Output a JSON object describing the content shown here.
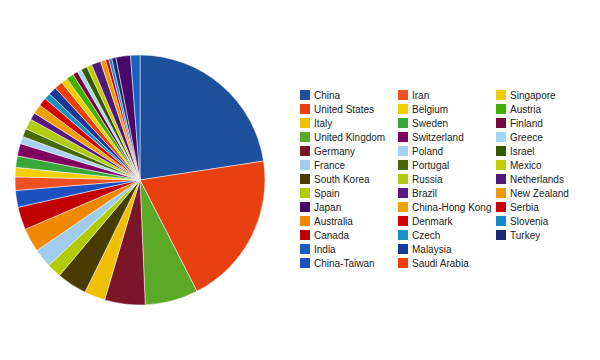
{
  "chart_data": {
    "type": "pie",
    "categories": [
      "China",
      "United States",
      "United Kingdom",
      "Germany",
      "Italy",
      "South Korea",
      "Spain",
      "France",
      "Australia",
      "Canada",
      "China-Taiwan",
      "Iran",
      "Belgium",
      "Sweden",
      "Switzerland",
      "Poland",
      "Portugal",
      "Russia",
      "Brazil",
      "China-Hong Kong",
      "Denmark",
      "Czech",
      "Malaysia",
      "Saudi Arabia",
      "Singapore",
      "Austria",
      "Finland",
      "Greece",
      "Israel",
      "Mexico",
      "Netherlands",
      "New Zealand",
      "Serbia",
      "Slovenia",
      "Turkey",
      "Japan",
      "India"
    ],
    "values": [
      168,
      148,
      51,
      39,
      20,
      29,
      14,
      18,
      23,
      22,
      16,
      13,
      9,
      11,
      12,
      7,
      8,
      10,
      7,
      9,
      8,
      6,
      8,
      8,
      6,
      7,
      5,
      4,
      6,
      5,
      9,
      5,
      3,
      3,
      4,
      14,
      9
    ],
    "colors": [
      "#1c4f9c",
      "#e84010",
      "#5aaa28",
      "#7b1528",
      "#f0c000",
      "#4a3c00",
      "#b0cc00",
      "#a0ccf0",
      "#f08800",
      "#c00000",
      "#1a50c0",
      "#f05020",
      "#f0d000",
      "#38a838",
      "#800060",
      "#a8d0f0",
      "#486800",
      "#b0cc10",
      "#581880",
      "#f0a000",
      "#d00000",
      "#1890c0",
      "#1a3898",
      "#f04000",
      "#f0cc00",
      "#40b000",
      "#780838",
      "#a0d8f8",
      "#385800",
      "#c0cc00",
      "#501878",
      "#f09800",
      "#c80008",
      "#1888c8",
      "#182870",
      "#480868",
      "#1860c0"
    ],
    "legend": "right",
    "legend_entries": [
      "China",
      "United States",
      "Italy",
      "United Kingdom",
      "Germany",
      "France",
      "South Korea",
      "Spain",
      "Japan",
      "Australia",
      "Canada",
      "India",
      "China-Taiwan",
      "Iran",
      "Belgium",
      "Sweden",
      "Switzerland",
      "Poland",
      "Portugal",
      "Russia",
      "Brazil",
      "China-Hong Kong",
      "Denmark",
      "Czech",
      "Malaysia",
      "Saudi Arabia",
      "Singapore",
      "Austria",
      "Finland",
      "Greece",
      "Israel",
      "Mexico",
      "Netherlands",
      "New Zealand",
      "Serbia",
      "Slovenia",
      "Turkey"
    ]
  }
}
